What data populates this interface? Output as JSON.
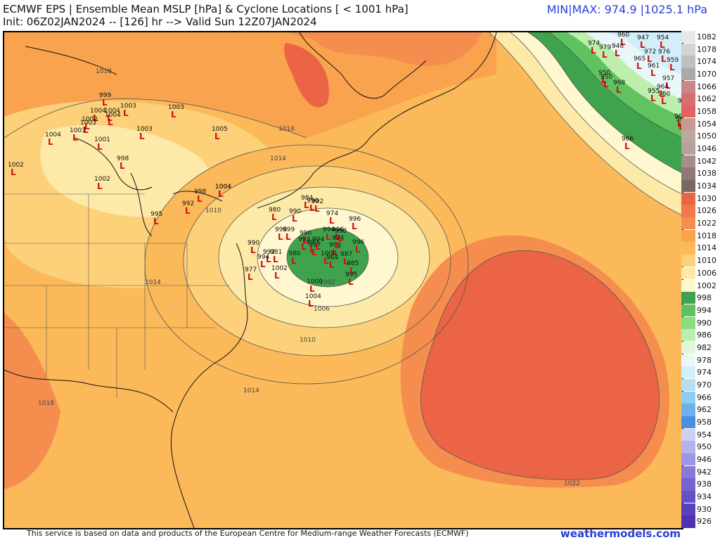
{
  "header": {
    "title": "ECMWF EPS | Ensemble Mean MSLP [hPa] & Cyclone Locations [ < 1001 hPa]",
    "init": "Init: 06Z02JAN2024 -- [126] hr --> Valid Sun 12Z07JAN2024",
    "minmax": "MIN|MAX: 974.9 |1025.1 hPa"
  },
  "colorbar": {
    "levels": [
      "1082",
      "1078",
      "1074",
      "1070",
      "1066",
      "1062",
      "1058",
      "1054",
      "1050",
      "1046",
      "1042",
      "1038",
      "1034",
      "1030",
      "1026",
      "1022",
      "1018",
      "1014",
      "1010",
      "1006",
      "1002",
      "998",
      "994",
      "990",
      "986",
      "982",
      "978",
      "974",
      "970",
      "966",
      "962",
      "958",
      "954",
      "950",
      "946",
      "942",
      "938",
      "934",
      "930",
      "926"
    ],
    "colors": [
      "#e8e8e8",
      "#d4d4d4",
      "#bfbfbf",
      "#a9a9a9",
      "#c98787",
      "#d77070",
      "#e46262",
      "#c99a92",
      "#bda7a1",
      "#b5a29c",
      "#a88e87",
      "#8f7b75",
      "#7a6863",
      "#ea6445",
      "#f1784a",
      "#f58d4f",
      "#f9a34f",
      "#fbb95a",
      "#fcd17a",
      "#feeaa8",
      "#fff7cf",
      "#3fa34d",
      "#5fc35f",
      "#8bdc7c",
      "#bdeeae",
      "#e1f7d8",
      "#e9f7f8",
      "#d2eef8",
      "#b3dff5",
      "#91cbf0",
      "#6db1ea",
      "#4b8fdf",
      "#cfcff2",
      "#b5b2ec",
      "#9d96e4",
      "#8779da",
      "#7663cf",
      "#6650c6",
      "#5a40bc",
      "#4d33b0"
    ]
  },
  "map": {
    "isobar_labels": [
      "1018",
      "1018",
      "1014",
      "1014",
      "1010",
      "1010",
      "1006",
      "1002",
      "1014",
      "1018",
      "1022"
    ],
    "cyclones": [
      "999",
      "1003",
      "1003",
      "1004",
      "1004",
      "1003",
      "1004",
      "1002",
      "1004",
      "1002",
      "1003",
      "1001",
      "1003",
      "1005",
      "998",
      "1002",
      "1004",
      "995",
      "992",
      "998",
      "1004",
      "980",
      "990",
      "996",
      "999",
      "984",
      "990",
      "992",
      "974",
      "996",
      "990",
      "997",
      "994",
      "996",
      "993",
      "994",
      "998",
      "996",
      "980",
      "993",
      "994",
      "1000",
      "964",
      "987",
      "985",
      "995",
      "996",
      "990",
      "977",
      "992",
      "994",
      "981",
      "1002",
      "1000",
      "1004",
      "948",
      "960",
      "950",
      "947",
      "954",
      "974",
      "979",
      "965",
      "972",
      "976",
      "959",
      "961",
      "950",
      "968",
      "957",
      "960",
      "961",
      "955",
      "964",
      "965",
      "960",
      "966"
    ]
  },
  "footer": {
    "attribution": "This service is based on data and products of the European Centre for Medium-range Weather Forecasts (ECMWF)",
    "brand": "weathermodels.com"
  }
}
